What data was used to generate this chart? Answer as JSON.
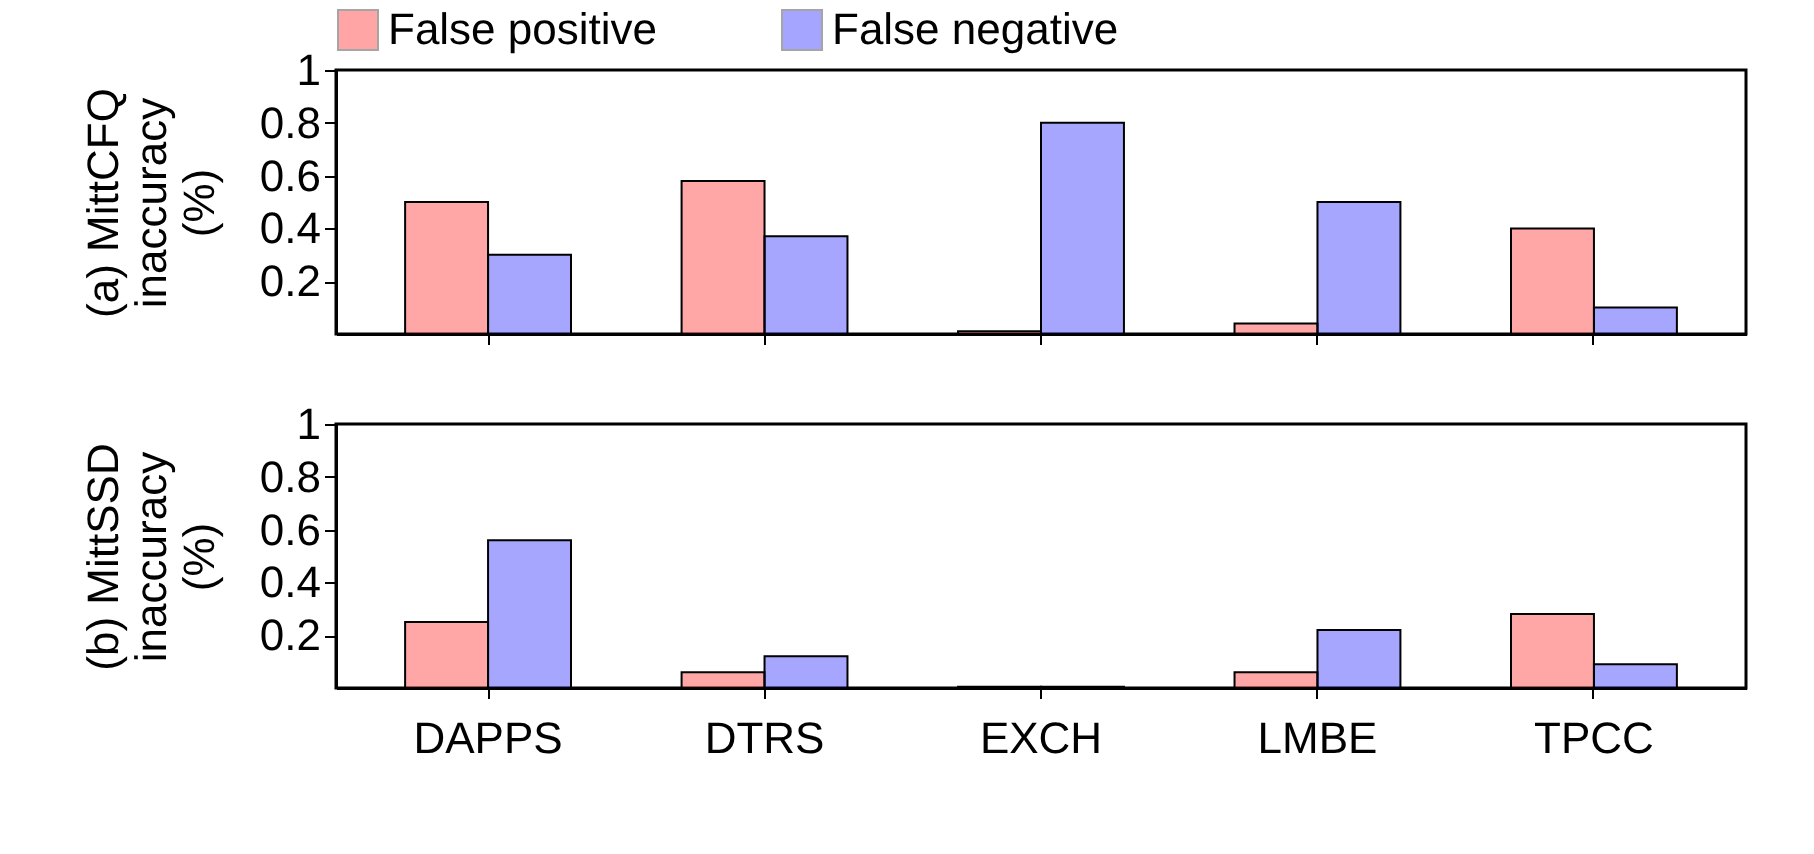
{
  "chart_data": [
    {
      "type": "bar",
      "ylabel": "(a) MittCFQ\ninaccuracy\n(%)",
      "categories": [
        null,
        null,
        null,
        null,
        null
      ],
      "series": [
        {
          "name": "False positive",
          "color": "#ff0000",
          "values": [
            0.5,
            0.58,
            0.01,
            0.04,
            0.4
          ]
        },
        {
          "name": "False negative",
          "color": "#0000ff",
          "values": [
            0.3,
            0.37,
            0.8,
            0.5,
            0.1
          ]
        }
      ],
      "ylim": [
        0,
        1
      ],
      "yticks": [
        0.2,
        0.4,
        0.6,
        0.8,
        1
      ],
      "legend": "top",
      "tick_labels": "y"
    },
    {
      "type": "bar",
      "ylabel": "(b) MittSSD\ninaccuracy\n(%)",
      "categories": [
        "DAPPS",
        "DTRS",
        "EXCH",
        "LMBE",
        "TPCC"
      ],
      "series": [
        {
          "color": "#ff0000",
          "values": [
            0.25,
            0.06,
            0.005,
            0.06,
            0.28
          ]
        },
        {
          "color": "#0000ff",
          "values": [
            0.56,
            0.12,
            0.005,
            0.22,
            0.09
          ]
        }
      ],
      "ylim": [
        0,
        1
      ],
      "yticks": [
        0.2,
        0.4,
        0.6,
        0.8,
        1
      ]
    }
  ]
}
